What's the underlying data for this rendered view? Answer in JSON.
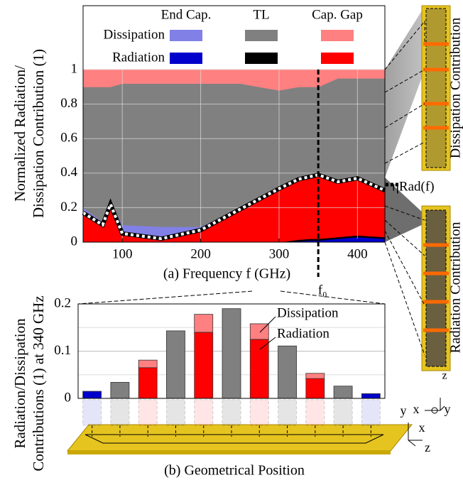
{
  "chart_data": [
    {
      "type": "stacked-area",
      "ylabel": [
        "Normalized Radiation/",
        "Dissipation Contribution (1)"
      ],
      "xlabel": "(a) Frequency f (GHz)",
      "legend_rows": [
        "Dissipation",
        "Radiation"
      ],
      "x": [
        50,
        75,
        85,
        100,
        150,
        200,
        250,
        300,
        325,
        340,
        350,
        375,
        400,
        435
      ],
      "series": [
        {
          "name": "End Cap.",
          "radiation": {
            "color": "#0000cc",
            "values": [
              0,
              0,
              0,
              0,
              0,
              0,
              0,
              0,
              0.005,
              0.01,
              0.01,
              0.02,
              0.03,
              0.02
            ]
          },
          "dissipation": {
            "color": "#8080e6",
            "values": [
              0.03,
              0.02,
              0.02,
              0.05,
              0.07,
              0.02,
              0.01,
              0.01,
              0.01,
              0.01,
              0.01,
              0.01,
              0.01,
              0.01
            ]
          }
        },
        {
          "name": "TL",
          "radiation": {
            "color": "#000000",
            "values": [
              0,
              0,
              0,
              0,
              0,
              0,
              0,
              0,
              0.01,
              0.01,
              0.01,
              0.01,
              0.01,
              0.01
            ]
          },
          "dissipation": {
            "color": "#808080",
            "values": [
              0.7,
              0.78,
              0.66,
              0.82,
              0.83,
              0.83,
              0.72,
              0.56,
              0.525,
              0.51,
              0.5,
              0.59,
              0.57,
              0.64
            ]
          }
        },
        {
          "name": "Cap. Gap",
          "radiation": {
            "color": "#ff0000",
            "values": [
              0.17,
              0.1,
              0.22,
              0.05,
              0.02,
              0.07,
              0.19,
              0.31,
              0.35,
              0.36,
              0.37,
              0.32,
              0.33,
              0.27
            ]
          },
          "dissipation": {
            "color": "#ff8080",
            "values": [
              0.1,
              0.1,
              0.1,
              0.08,
              0.08,
              0.08,
              0.08,
              0.12,
              0.1,
              0.1,
              0.1,
              0.05,
              0.05,
              0.05
            ]
          }
        }
      ],
      "xlim": [
        50,
        435
      ],
      "xticks": [
        100,
        200,
        300,
        400
      ],
      "ylim": [
        0,
        1
      ],
      "yticks": [
        0,
        0.2,
        0.4,
        0.6,
        0.8,
        1
      ],
      "grid": true,
      "annotations": [
        {
          "text": "ηRad(f)"
        },
        {
          "text": "f₀",
          "x": 350
        }
      ]
    },
    {
      "type": "stacked-bar",
      "ylabel": [
        "Radiation/Dissipation",
        "Contributions (1) at 340 GHz"
      ],
      "xlabel": "(b) Geometrical Position",
      "categories": [
        null,
        null,
        null,
        null,
        null,
        null,
        null,
        null,
        null,
        null,
        null
      ],
      "series": [
        {
          "name": "Radiation",
          "values": [
            0.015,
            0,
            0.065,
            0,
            0.14,
            0,
            0.125,
            0,
            0.042,
            0,
            0.01
          ],
          "colors": [
            "#0000cc",
            "#000000",
            "#ff0000",
            "#000000",
            "#ff0000",
            "#000000",
            "#ff0000",
            "#000000",
            "#ff0000",
            "#000000",
            "#0000cc"
          ]
        },
        {
          "name": "Dissipation",
          "values": [
            0,
            0.034,
            0.016,
            0.143,
            0.038,
            0.19,
            0.033,
            0.111,
            0.011,
            0.026,
            0
          ],
          "colors": [
            "#8080e6",
            "#808080",
            "#ff8080",
            "#808080",
            "#ff8080",
            "#808080",
            "#ff8080",
            "#808080",
            "#ff8080",
            "#808080",
            "#8080e6"
          ]
        }
      ],
      "ylim": [
        0,
        0.2
      ],
      "yticks": [
        0,
        0.1,
        0.2
      ],
      "minor_yticks": [
        0.05,
        0.15
      ],
      "grid": true
    }
  ],
  "figure_texts": {
    "right_top": "Dissipation Contribution",
    "right_bottom": "Radiation Contribution",
    "axes_right": [
      "z",
      "x",
      "y"
    ],
    "axes_bottom": [
      "y",
      "x",
      "z"
    ]
  }
}
